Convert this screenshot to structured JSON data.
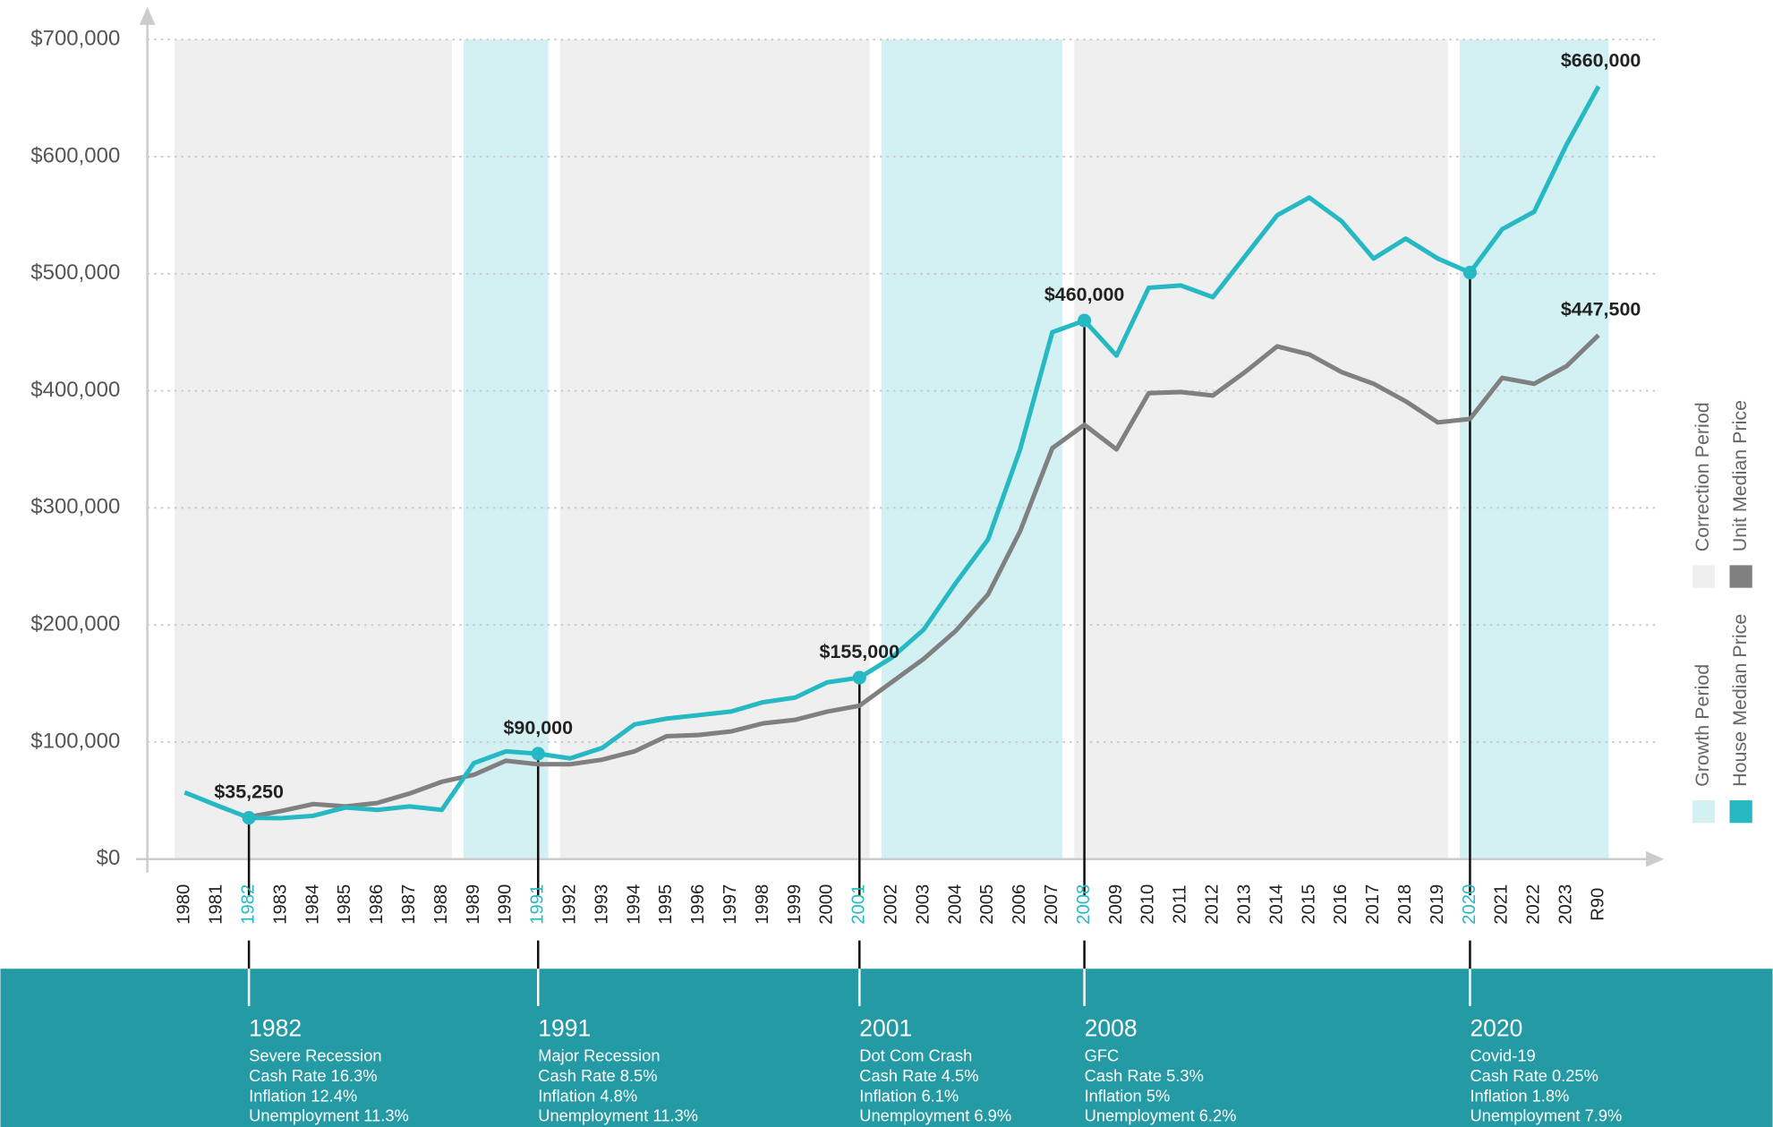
{
  "chart_data": {
    "type": "line",
    "categories": [
      "1980",
      "1981",
      "1982",
      "1983",
      "1984",
      "1985",
      "1986",
      "1987",
      "1988",
      "1989",
      "1990",
      "1991",
      "1992",
      "1993",
      "1994",
      "1995",
      "1996",
      "1997",
      "1998",
      "1999",
      "2000",
      "2001",
      "2002",
      "2003",
      "2004",
      "2005",
      "2006",
      "2007",
      "2008",
      "2009",
      "2010",
      "2011",
      "2012",
      "2013",
      "2014",
      "2015",
      "2016",
      "2017",
      "2018",
      "2019",
      "2020",
      "2021",
      "2022",
      "2023",
      "R90"
    ],
    "series": [
      {
        "name": "House Median Price",
        "color": "#26b9c4",
        "values": [
          57000,
          46000,
          35250,
          35000,
          37000,
          44000,
          42000,
          45000,
          42000,
          82000,
          92000,
          90000,
          86000,
          95000,
          115000,
          120000,
          123000,
          126000,
          134000,
          138000,
          151000,
          155000,
          172000,
          196000,
          236000,
          273000,
          350000,
          450000,
          460000,
          430000,
          488000,
          490000,
          480000,
          515000,
          550000,
          565000,
          545000,
          513000,
          530000,
          513000,
          501000,
          538000,
          553000,
          610000,
          660000
        ],
        "value_labels": [
          null,
          null,
          "$35,250",
          null,
          null,
          null,
          null,
          null,
          null,
          null,
          null,
          "$90,000",
          null,
          null,
          null,
          null,
          null,
          null,
          null,
          null,
          null,
          "$155,000",
          null,
          null,
          null,
          null,
          null,
          null,
          "$460,000",
          null,
          null,
          null,
          null,
          null,
          null,
          null,
          null,
          null,
          null,
          null,
          null,
          null,
          null,
          null,
          "$660,000"
        ]
      },
      {
        "name": "Unit Median Price",
        "color": "#808080",
        "values": [
          null,
          null,
          36000,
          41000,
          47000,
          45000,
          48000,
          56000,
          66000,
          72000,
          84000,
          81000,
          81000,
          85000,
          92000,
          105000,
          106000,
          109000,
          116000,
          119000,
          126000,
          131000,
          151000,
          171000,
          195000,
          226000,
          280000,
          351000,
          371000,
          350000,
          398000,
          399000,
          396000,
          416000,
          438000,
          431000,
          416000,
          406000,
          391000,
          373000,
          376000,
          411000,
          406000,
          421000,
          447500
        ],
        "value_labels": [
          null,
          null,
          null,
          null,
          null,
          null,
          null,
          null,
          null,
          null,
          null,
          null,
          null,
          null,
          null,
          null,
          null,
          null,
          null,
          null,
          null,
          null,
          null,
          null,
          null,
          null,
          null,
          null,
          null,
          null,
          null,
          null,
          null,
          null,
          null,
          null,
          null,
          null,
          null,
          null,
          null,
          null,
          null,
          null,
          "$447,500"
        ]
      }
    ],
    "period_types": [
      {
        "name": "Growth Period",
        "color": "#d3f0f2"
      },
      {
        "name": "Correction Period",
        "color": "#efefef"
      }
    ],
    "periods": [
      {
        "kind": 1,
        "from": "1980",
        "to": "1988"
      },
      {
        "kind": 0,
        "from": "1989",
        "to": "1991"
      },
      {
        "kind": 1,
        "from": "1992",
        "to": "2001"
      },
      {
        "kind": 0,
        "from": "2002",
        "to": "2007"
      },
      {
        "kind": 1,
        "from": "2008",
        "to": "2019"
      },
      {
        "kind": 0,
        "from": "2020",
        "to": "R90"
      }
    ],
    "ylim": [
      0,
      700000
    ],
    "yticks": [
      {
        "value": 0,
        "label": "$0"
      },
      {
        "value": 100000,
        "label": "$100,000"
      },
      {
        "value": 200000,
        "label": "$200,000"
      },
      {
        "value": 300000,
        "label": "$300,000"
      },
      {
        "value": 400000,
        "label": "$400,000"
      },
      {
        "value": 500000,
        "label": "$500,000"
      },
      {
        "value": 600000,
        "label": "$600,000"
      },
      {
        "value": 700000,
        "label": "$700,000"
      }
    ],
    "grid": true,
    "events": [
      {
        "title": "1982",
        "lines": [
          "Severe Recession",
          "Cash Rate 16.3%",
          "Inflation 12.4%",
          "Unemployment 11.3%"
        ]
      },
      {
        "title": "1991",
        "lines": [
          "Major Recession",
          "Cash Rate 8.5%",
          "Inflation 4.8%",
          "Unemployment 11.3%"
        ]
      },
      {
        "title": "2001",
        "lines": [
          "Dot Com Crash",
          "Cash Rate 4.5%",
          "Inflation 6.1%",
          "Unemployment 6.9%"
        ]
      },
      {
        "title": "2008",
        "lines": [
          "GFC",
          "Cash Rate 5.3%",
          "Inflation 5%",
          "Unemployment 6.2%"
        ]
      },
      {
        "title": "2020",
        "lines": [
          "Covid-19",
          "Cash Rate 0.25%",
          "Inflation 1.8%",
          "Unemployment 7.9%"
        ]
      }
    ]
  }
}
